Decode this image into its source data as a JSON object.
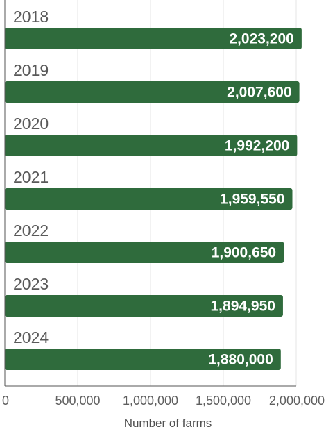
{
  "chart_data": {
    "type": "bar",
    "orientation": "horizontal",
    "categories": [
      "2018",
      "2019",
      "2020",
      "2021",
      "2022",
      "2023",
      "2024"
    ],
    "values": [
      2023200,
      2007600,
      1992200,
      1959550,
      1900650,
      1894950,
      1880000
    ],
    "value_labels": [
      "2,023,200",
      "2,007,600",
      "1,992,200",
      "1,959,550",
      "1,900,650",
      "1,894,950",
      "1,880,000"
    ],
    "xlabel": "Number of farms",
    "ylabel": "",
    "title": "",
    "xlim": [
      0,
      2000000
    ],
    "x_ticks": [
      0,
      500000,
      1000000,
      1500000,
      2000000
    ],
    "x_tick_labels": [
      "0",
      "500,000",
      "1,000,000",
      "1,500,000",
      "2,000,000"
    ],
    "grid": "vertical",
    "legend": "none",
    "colors": {
      "bar": "#2f6b3c",
      "grid": "#e6e6e6",
      "axis": "#555555",
      "category_text": "#595959",
      "value_text": "#ffffff"
    }
  }
}
